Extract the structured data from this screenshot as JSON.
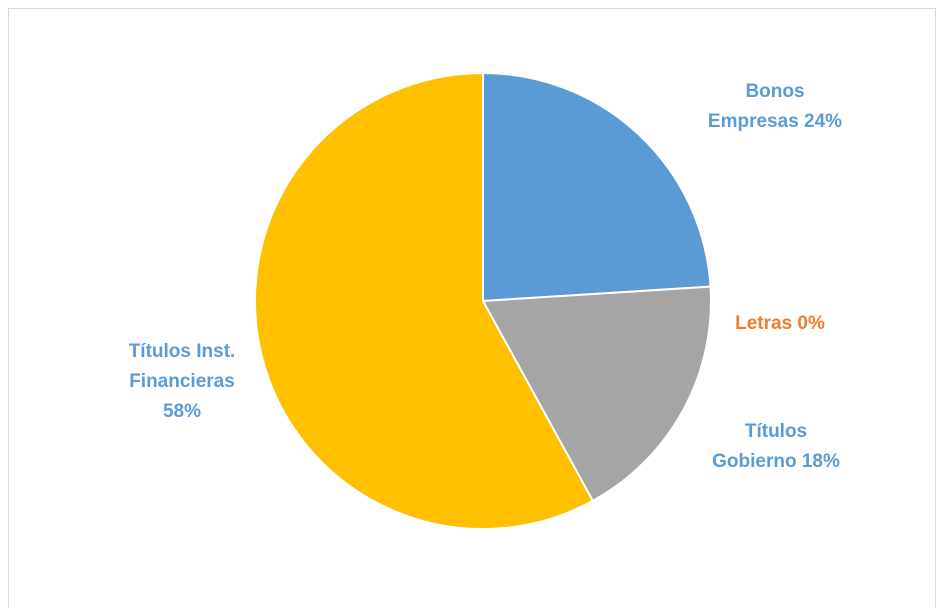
{
  "chart_data": {
    "type": "pie",
    "title": "",
    "start_angle_deg": 0,
    "direction": "clockwise",
    "slices": [
      {
        "name": "Bonos Empresas",
        "value": 24,
        "label_lines": [
          "Bonos",
          "Empresas 24%"
        ],
        "color": "#5b9bd5",
        "label_color": "#5b9bd5"
      },
      {
        "name": "Letras",
        "value": 0,
        "label_lines": [
          "Letras 0%"
        ],
        "color": "#ed7d31",
        "label_color": "#ed7d31"
      },
      {
        "name": "Títulos Gobierno",
        "value": 18,
        "label_lines": [
          "Títulos",
          "Gobierno 18%"
        ],
        "color": "#a5a5a5",
        "label_color": "#5b9bd5"
      },
      {
        "name": "Títulos Inst. Financieras",
        "value": 58,
        "label_lines": [
          "Títulos Inst.",
          "Financieras",
          "58%"
        ],
        "color": "#ffc000",
        "label_color": "#5b9bd5"
      }
    ]
  }
}
